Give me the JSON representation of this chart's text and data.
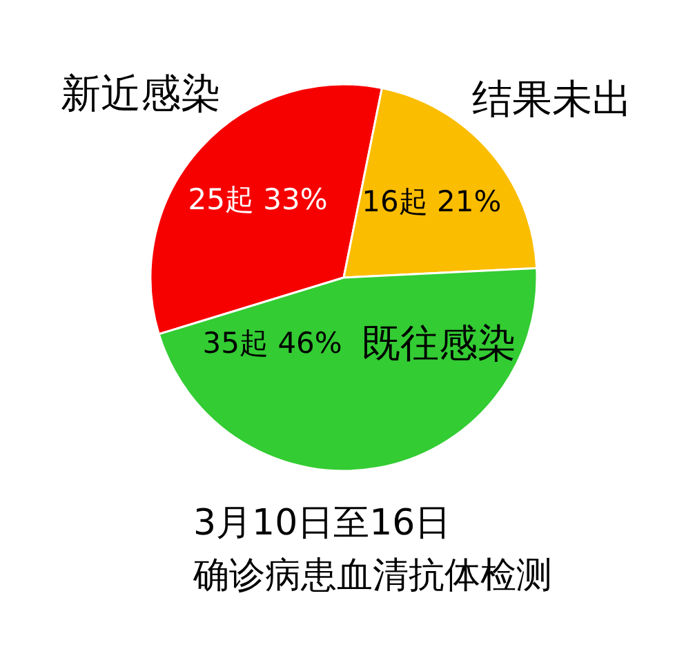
{
  "chart_data": {
    "type": "pie",
    "title": "3月10日至16日",
    "subtitle": "确诊病患血清抗体检测",
    "categories": [
      "新近感染",
      "结果未出",
      "既往感染"
    ],
    "values": [
      25,
      16,
      35
    ],
    "colors": [
      "#f70000",
      "#fbbd00",
      "#33cc33"
    ],
    "value_labels": [
      "25起 33%",
      "16起 21%",
      "35起 46%"
    ]
  }
}
